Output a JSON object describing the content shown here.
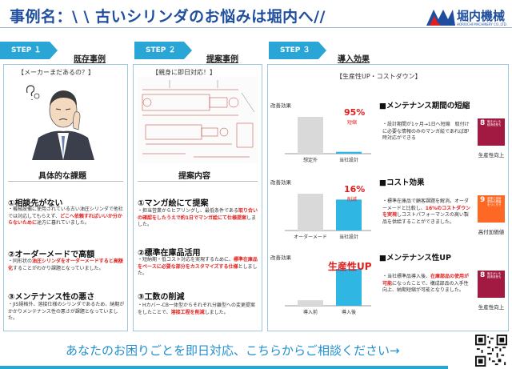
{
  "header": {
    "title": "事例名：\\ \\ 古いシリンダのお悩みは堀内へ//",
    "logo_text": "堀内機械",
    "logo_sub": "HORIUCHI MACHINERY CO.,LTD."
  },
  "steps": [
    {
      "tab": "STEP １",
      "title": "既存事例"
    },
    {
      "tab": "STEP ２",
      "title": "提案事例"
    },
    {
      "tab": "STEP ３",
      "title": "導入効果"
    }
  ],
  "step1": {
    "bracket": "【メーカーまだあるの？】",
    "subhead": "具体的な課題",
    "items": [
      {
        "title": "①相談先がない",
        "body_a": "・機械設備に使用されている古い油圧シリンダで他社では対応してもらえず、",
        "body_red": "どこへ依頼すればいいか分からないために",
        "body_b": "途方に暮れていました。"
      },
      {
        "title": "②オーダーメードで高額",
        "body_a": "・同形状の",
        "body_red": "油圧シリンダをオーダーメードすると高額化",
        "body_b": "することがわかり課題となっていました。"
      },
      {
        "title": "③メンテナンス性の悪さ",
        "body_a": "・JIS規格外、溶接仕様のシリンダであるため、納期がかかりメンテナンス性の悪さが課題となっていました。",
        "body_red": "",
        "body_b": ""
      }
    ]
  },
  "step2": {
    "bracket": "【親身に即日対応！】",
    "subhead": "提案内容",
    "items": [
      {
        "title": "①マンガ絵にて提案",
        "body_a": "・担当営業からヒアリングし、最低条件である",
        "body_red": "取り合いの確認をしたうえで約1日でマンガ絵にて仕様提案",
        "body_b": "しました。"
      },
      {
        "title": "②標準在庫品活用",
        "body_a": "・短納期・低コスト対応を実現するために、",
        "body_red": "標準在庫品をベースに必要な部分をカスタマイズする仕様",
        "body_b": "としました。"
      },
      {
        "title": "③工数の削減",
        "body_a": "・Hカバー-CB一体型からそれぞれ分離型への変更提案をしたことで、",
        "body_red": "溶接工程を削減",
        "body_b": "しました。"
      }
    ]
  },
  "step3": {
    "bracket": "【生産性UP・コストダウン】",
    "effects": [
      {
        "label": "改善効果",
        "categories": [
          "想定外",
          "当社設計"
        ],
        "values": [
          100,
          5
        ],
        "percent": "95%",
        "percent_note": "短縮",
        "title": "■メンテナンス期間の短縮",
        "body_a": "・設計期間が1ヶ月→1日へ短縮　取付けに必要な情報のみのマンガ絵であれば即時対応ができる",
        "body_red": "",
        "body_b": "",
        "sdg_num": "8",
        "sdg_text": "働きがいも経済成長も",
        "sdg_color": "#a21942",
        "sdg_caption": "生産性向上"
      },
      {
        "label": "改善効果",
        "categories": [
          "オーダーメード",
          "当社設計"
        ],
        "values": [
          100,
          84
        ],
        "percent": "16%",
        "percent_note": "削減",
        "title": "■コスト効果",
        "body_a": "・標準在庫品で顧客課題を解消。オーダーメードと比較し、",
        "body_red": "16%のコストダウンを実現",
        "body_b": "しコストパフォーマンスの高い製品を供給することができました。",
        "sdg_num": "9",
        "sdg_text": "産業と技術革新の基盤をつくろう",
        "sdg_color": "#fd6925",
        "sdg_caption": "高付加価値"
      },
      {
        "label": "改善効果",
        "categories": [
          "導入前",
          "導入後"
        ],
        "values": [
          15,
          100
        ],
        "percent": "生産性UP",
        "percent_note": "",
        "title": "■メンテナンス性UP",
        "body_a": "・当社標準品導入後、",
        "body_red": "在庫部品の使用が可能",
        "body_b": "になったことで、構成部品の入手性向上、納期短縮が可能となりました。",
        "sdg_num": "8",
        "sdg_text": "働きがいも経済成長も",
        "sdg_color": "#a21942",
        "sdg_caption": "生産性向上"
      }
    ]
  },
  "footer": {
    "cta": "あなたのお困りごとを即日対応、こちらからご相談ください→"
  },
  "colors": {
    "brand": "#1f4e9e",
    "step_tab": "#2aa6d6",
    "accent_red": "#e0201e",
    "bar_blue": "#2fb6e3",
    "bar_grey": "#d9d9d9"
  }
}
